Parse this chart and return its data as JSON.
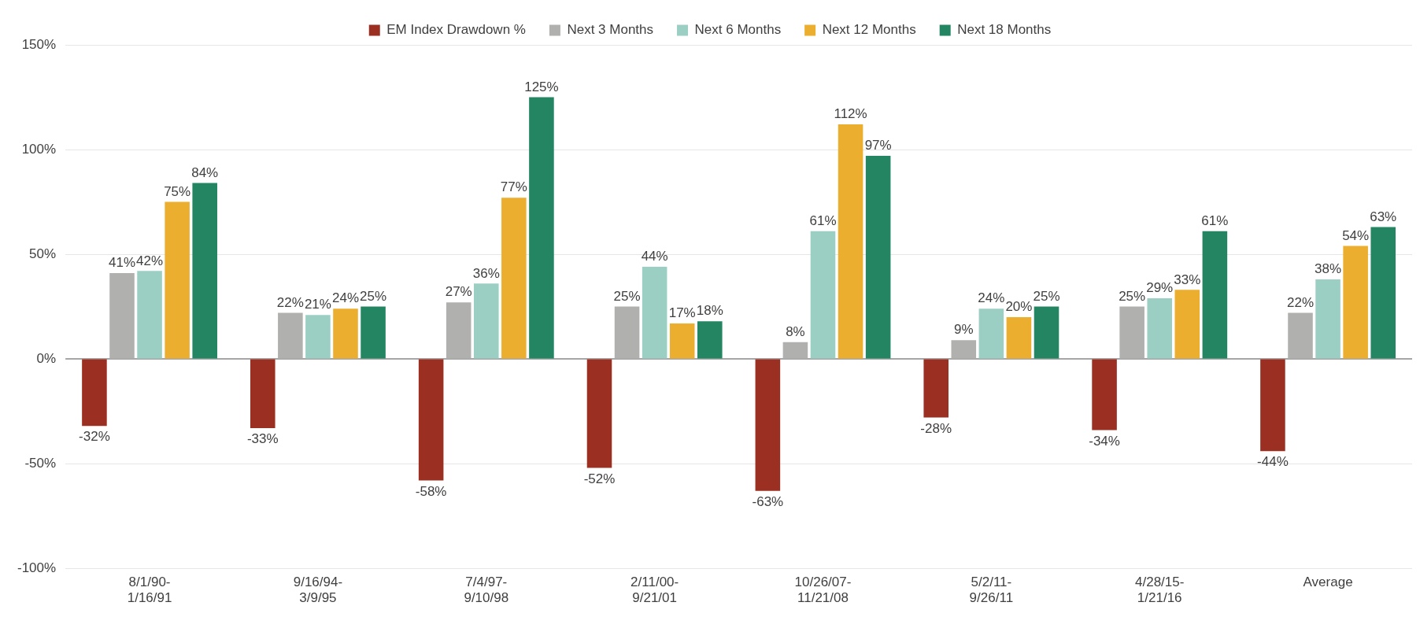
{
  "chart_data": {
    "type": "bar",
    "categories": [
      "8/1/90-\n1/16/91",
      "9/16/94-\n3/9/95",
      "7/4/97-\n9/10/98",
      "2/11/00-\n9/21/01",
      "10/26/07-\n11/21/08",
      "5/2/11-\n9/26/11",
      "4/28/15-\n1/21/16",
      "Average"
    ],
    "series": [
      {
        "name": "EM Index Drawdown %",
        "color": "#9b3022",
        "values": [
          -32,
          -33,
          -58,
          -52,
          -63,
          -28,
          -34,
          -44
        ],
        "value_labels": [
          "-32%",
          "-33%",
          "-58%",
          "-52%",
          "-63%",
          "-28%",
          "-34%",
          "-44%"
        ]
      },
      {
        "name": "Next 3 Months",
        "color": "#b0b0ae",
        "values": [
          41,
          22,
          27,
          25,
          8,
          9,
          25,
          22
        ],
        "value_labels": [
          "41%",
          "22%",
          "27%",
          "25%",
          "8%",
          "9%",
          "25%",
          "22%"
        ]
      },
      {
        "name": "Next 6 Months",
        "color": "#9ccfc4",
        "values": [
          42,
          21,
          36,
          44,
          61,
          24,
          29,
          38
        ],
        "value_labels": [
          "42%",
          "21%",
          "36%",
          "44%",
          "61%",
          "24%",
          "29%",
          "38%"
        ]
      },
      {
        "name": "Next 12 Months",
        "color": "#ecae2f",
        "values": [
          75,
          24,
          77,
          17,
          112,
          20,
          33,
          54
        ],
        "value_labels": [
          "75%",
          "24%",
          "77%",
          "17%",
          "112%",
          "20%",
          "33%",
          "54%"
        ]
      },
      {
        "name": "Next 18 Months",
        "color": "#248563",
        "values": [
          84,
          25,
          125,
          18,
          97,
          25,
          61,
          63
        ],
        "value_labels": [
          "84%",
          "25%",
          "125%",
          "18%",
          "97%",
          "25%",
          "61%",
          "63%"
        ]
      }
    ],
    "ylim": [
      -100,
      150
    ],
    "yticks": [
      {
        "value": -100,
        "label": "-100%"
      },
      {
        "value": -50,
        "label": "-50%"
      },
      {
        "value": 0,
        "label": "0%"
      },
      {
        "value": 50,
        "label": "50%"
      },
      {
        "value": 100,
        "label": "100%"
      },
      {
        "value": 150,
        "label": "150%"
      }
    ],
    "grid": "y",
    "legend": "top"
  }
}
